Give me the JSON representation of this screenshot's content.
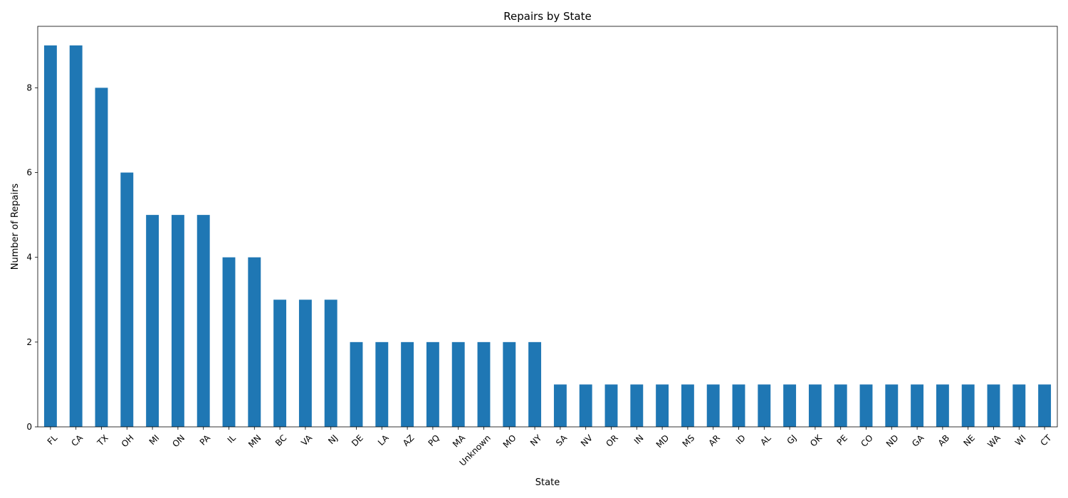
{
  "chart_data": {
    "type": "bar",
    "title": "Repairs by State",
    "xlabel": "State",
    "ylabel": "Number of Repairs",
    "categories": [
      "FL",
      "CA",
      "TX",
      "OH",
      "MI",
      "ON",
      "PA",
      "IL",
      "MN",
      "BC",
      "VA",
      "NJ",
      "DE",
      "LA",
      "AZ",
      "PQ",
      "MA",
      "Unknown",
      "MO",
      "NY",
      "SA",
      "NV",
      "OR",
      "IN",
      "MD",
      "MS",
      "AR",
      "ID",
      "AL",
      "GJ",
      "OK",
      "PE",
      "CO",
      "ND",
      "GA",
      "AB",
      "NE",
      "WA",
      "WI",
      "CT"
    ],
    "values": [
      9,
      9,
      8,
      6,
      5,
      5,
      5,
      4,
      4,
      3,
      3,
      3,
      2,
      2,
      2,
      2,
      2,
      2,
      2,
      2,
      1,
      1,
      1,
      1,
      1,
      1,
      1,
      1,
      1,
      1,
      1,
      1,
      1,
      1,
      1,
      1,
      1,
      1,
      1,
      1
    ],
    "ylim": [
      0,
      9.45
    ],
    "yticks": [
      0,
      2,
      4,
      6,
      8
    ],
    "xtick_rotation": 45,
    "bar_color": "#1f77b4",
    "grid": false,
    "legend": "none"
  }
}
